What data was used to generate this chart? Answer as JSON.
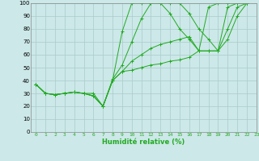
{
  "xlabel": "Humidité relative (%)",
  "background_color": "#cce8e8",
  "grid_color": "#aacaca",
  "line_color": "#22aa22",
  "xlim": [
    -0.5,
    23
  ],
  "ylim": [
    0,
    100
  ],
  "xticks": [
    0,
    1,
    2,
    3,
    4,
    5,
    6,
    7,
    8,
    9,
    10,
    11,
    12,
    13,
    14,
    15,
    16,
    17,
    18,
    19,
    20,
    21,
    22,
    23
  ],
  "yticks": [
    0,
    10,
    20,
    30,
    40,
    50,
    60,
    70,
    80,
    90,
    100
  ],
  "x_vals": [
    0,
    1,
    2,
    3,
    4,
    5,
    6,
    7,
    8,
    9,
    10,
    11,
    12,
    13,
    14,
    15,
    16,
    17,
    18,
    19,
    20,
    21,
    22
  ],
  "series": [
    [
      37,
      30,
      29,
      30,
      31,
      30,
      30,
      20,
      40,
      78,
      100,
      100,
      100,
      100,
      92,
      80,
      72,
      63,
      97,
      100,
      100,
      100,
      100
    ],
    [
      37,
      30,
      29,
      30,
      31,
      30,
      28,
      20,
      41,
      52,
      70,
      88,
      100,
      100,
      100,
      100,
      92,
      80,
      72,
      63,
      97,
      100,
      100
    ],
    [
      37,
      30,
      29,
      30,
      31,
      30,
      28,
      20,
      40,
      47,
      55,
      60,
      65,
      68,
      70,
      72,
      74,
      63,
      63,
      63,
      80,
      97,
      100
    ],
    [
      37,
      30,
      29,
      30,
      31,
      30,
      28,
      20,
      40,
      47,
      48,
      50,
      52,
      53,
      55,
      56,
      58,
      63,
      63,
      63,
      72,
      90,
      100
    ]
  ]
}
